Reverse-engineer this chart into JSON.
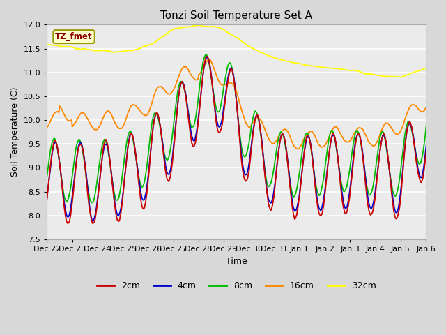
{
  "title": "Tonzi Soil Temperature Set A",
  "xlabel": "Time",
  "ylabel": "Soil Temperature (C)",
  "ylim": [
    7.5,
    12.0
  ],
  "yticks": [
    7.5,
    8.0,
    8.5,
    9.0,
    9.5,
    10.0,
    10.5,
    11.0,
    11.5,
    12.0
  ],
  "colors": {
    "2cm": "#cc0000",
    "4cm": "#0000cc",
    "8cm": "#00bb00",
    "16cm": "#ff8800",
    "32cm": "#ffff00"
  },
  "label_box": {
    "text": "TZ_fmet",
    "text_color": "#8b0000",
    "bg_color": "#ffffcc",
    "border_color": "#999900"
  },
  "fig_facecolor": "#d8d8d8",
  "plot_bg_color": "#ebebeb",
  "grid_color": "#ffffff",
  "tick_labels": [
    "Dec 22",
    "Dec 23",
    "Dec 24",
    "Dec 25",
    "Dec 26",
    "Dec 27",
    "Dec 28",
    "Dec 29",
    "Dec 30",
    "Dec 31",
    "Jan 1",
    "Jan 2",
    "Jan 3",
    "Jan 4",
    "Jan 5",
    "Jan 6"
  ]
}
